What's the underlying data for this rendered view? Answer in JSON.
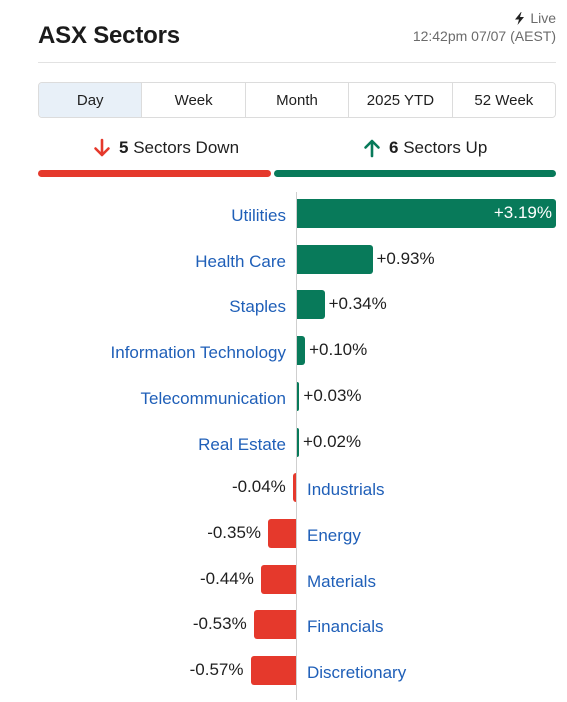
{
  "header": {
    "title": "ASX Sectors",
    "live_label": "Live",
    "timestamp": "12:42pm 07/07 (AEST)"
  },
  "tabs": [
    {
      "label": "Day",
      "active": true
    },
    {
      "label": "Week",
      "active": false
    },
    {
      "label": "Month",
      "active": false
    },
    {
      "label": "2025 YTD",
      "active": false
    },
    {
      "label": "52 Week",
      "active": false
    }
  ],
  "summary": {
    "down_count": "5",
    "down_label": "Sectors Down",
    "up_count": "6",
    "up_label": "Sectors Up"
  },
  "colors": {
    "up": "#087a5a",
    "down": "#e5392c",
    "link": "#1f5fb8",
    "active_tab": "#e8f0f8"
  },
  "chart_data": {
    "type": "bar",
    "orientation": "horizontal",
    "unit": "%",
    "categories": [
      "Utilities",
      "Health Care",
      "Staples",
      "Information Technology",
      "Telecommunication",
      "Real Estate",
      "Industrials",
      "Energy",
      "Materials",
      "Financials",
      "Discretionary"
    ],
    "values": [
      3.19,
      0.93,
      0.34,
      0.1,
      0.03,
      0.02,
      -0.04,
      -0.35,
      -0.44,
      -0.53,
      -0.57
    ],
    "labels": [
      "+3.19%",
      "+0.93%",
      "+0.34%",
      "+0.10%",
      "+0.03%",
      "+0.02%",
      "-0.04%",
      "-0.35%",
      "-0.44%",
      "-0.53%",
      "-0.57%"
    ]
  }
}
